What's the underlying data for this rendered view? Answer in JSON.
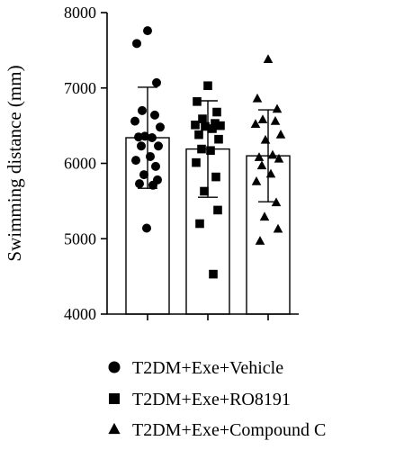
{
  "chart_data": {
    "type": "bar",
    "ylabel": "Swimming distance (mm)",
    "ylim": [
      4000,
      8000
    ],
    "yticks": [
      4000,
      5000,
      6000,
      7000,
      8000
    ],
    "ytick_labels": [
      "4000",
      "5000",
      "6000",
      "7000",
      "8000"
    ],
    "legend_position": "bottom",
    "series": [
      {
        "name": "T2DM+Exe+Vehicle",
        "marker": "circle",
        "mean": 6340,
        "error": 670,
        "points": [
          7760,
          7590,
          7070,
          6700,
          6640,
          6560,
          6480,
          6360,
          6340,
          6350,
          6230,
          6230,
          6090,
          6040,
          5960,
          5850,
          5780,
          5730,
          5710,
          5140
        ]
      },
      {
        "name": "T2DM+Exe+RO8191",
        "marker": "square",
        "mean": 6190,
        "error": 640,
        "points": [
          7030,
          6820,
          6680,
          6590,
          6530,
          6510,
          6500,
          6490,
          6460,
          6380,
          6320,
          6190,
          6170,
          6010,
          5820,
          5630,
          5380,
          5200,
          4530
        ]
      },
      {
        "name": "T2DM+Exe+Compound C",
        "marker": "triangle",
        "mean": 6100,
        "error": 610,
        "points": [
          7380,
          6860,
          6720,
          6580,
          6560,
          6520,
          6380,
          6310,
          6110,
          6080,
          6060,
          5970,
          5860,
          5760,
          5480,
          5290,
          5130,
          4970
        ]
      }
    ]
  }
}
